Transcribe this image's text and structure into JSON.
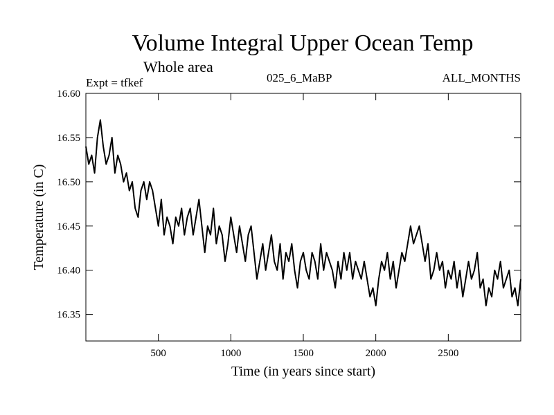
{
  "header": {
    "title": "Volume Integral Upper Ocean Temp",
    "subtitle": "Whole area",
    "experiment": "Expt = tfkef",
    "run_label": "025_6_MaBP",
    "months": "ALL_MONTHS"
  },
  "chart_data": {
    "type": "line",
    "title": "Volume Integral Upper Ocean Temp",
    "subtitle": "Whole area",
    "xlabel": "Time (in years since start)",
    "ylabel": "Temperature (in C)",
    "xlim": [
      0,
      3000
    ],
    "ylim": [
      16.32,
      16.6
    ],
    "xticks": [
      500,
      1000,
      1500,
      2000,
      2500
    ],
    "yticks": [
      16.35,
      16.4,
      16.45,
      16.5,
      16.55,
      16.6
    ],
    "ytick_labels": [
      "16.35",
      "16.40",
      "16.45",
      "16.50",
      "16.55",
      "16.60"
    ],
    "grid": false,
    "color": "#000000",
    "series": [
      {
        "x": [
          0,
          20,
          40,
          60,
          80,
          100,
          120,
          140,
          160,
          180,
          200,
          220,
          240,
          260,
          280,
          300,
          320,
          340,
          360,
          380,
          400,
          420,
          440,
          460,
          480,
          500,
          520,
          540,
          560,
          580,
          600,
          620,
          640,
          660,
          680,
          700,
          720,
          740,
          760,
          780,
          800,
          820,
          840,
          860,
          880,
          900,
          920,
          940,
          960,
          980,
          1000,
          1020,
          1040,
          1060,
          1080,
          1100,
          1120,
          1140,
          1160,
          1180,
          1200,
          1220,
          1240,
          1260,
          1280,
          1300,
          1320,
          1340,
          1360,
          1380,
          1400,
          1420,
          1440,
          1460,
          1480,
          1500,
          1520,
          1540,
          1560,
          1580,
          1600,
          1620,
          1640,
          1660,
          1680,
          1700,
          1720,
          1740,
          1760,
          1780,
          1800,
          1820,
          1840,
          1860,
          1880,
          1900,
          1920,
          1940,
          1960,
          1980,
          2000,
          2020,
          2040,
          2060,
          2080,
          2100,
          2120,
          2140,
          2160,
          2180,
          2200,
          2220,
          2240,
          2260,
          2280,
          2300,
          2320,
          2340,
          2360,
          2380,
          2400,
          2420,
          2440,
          2460,
          2480,
          2500,
          2520,
          2540,
          2560,
          2580,
          2600,
          2620,
          2640,
          2660,
          2680,
          2700,
          2720,
          2740,
          2760,
          2780,
          2800,
          2820,
          2840,
          2860,
          2880,
          2900,
          2920,
          2940,
          2960,
          2980,
          3000
        ],
        "y": [
          16.54,
          16.52,
          16.53,
          16.51,
          16.55,
          16.57,
          16.54,
          16.52,
          16.53,
          16.55,
          16.51,
          16.53,
          16.52,
          16.5,
          16.51,
          16.49,
          16.5,
          16.47,
          16.46,
          16.49,
          16.5,
          16.48,
          16.5,
          16.49,
          16.47,
          16.45,
          16.48,
          16.44,
          16.46,
          16.45,
          16.43,
          16.46,
          16.45,
          16.47,
          16.44,
          16.46,
          16.47,
          16.44,
          16.46,
          16.48,
          16.45,
          16.42,
          16.45,
          16.44,
          16.47,
          16.43,
          16.45,
          16.44,
          16.41,
          16.43,
          16.46,
          16.44,
          16.42,
          16.45,
          16.43,
          16.41,
          16.44,
          16.45,
          16.42,
          16.39,
          16.41,
          16.43,
          16.4,
          16.42,
          16.44,
          16.41,
          16.4,
          16.43,
          16.39,
          16.42,
          16.41,
          16.43,
          16.4,
          16.38,
          16.41,
          16.42,
          16.4,
          16.39,
          16.42,
          16.41,
          16.39,
          16.43,
          16.4,
          16.42,
          16.41,
          16.4,
          16.38,
          16.41,
          16.39,
          16.42,
          16.4,
          16.42,
          16.39,
          16.41,
          16.4,
          16.39,
          16.41,
          16.39,
          16.37,
          16.38,
          16.36,
          16.39,
          16.41,
          16.4,
          16.42,
          16.39,
          16.41,
          16.38,
          16.4,
          16.42,
          16.41,
          16.43,
          16.45,
          16.43,
          16.44,
          16.45,
          16.43,
          16.41,
          16.43,
          16.39,
          16.4,
          16.42,
          16.4,
          16.41,
          16.38,
          16.4,
          16.39,
          16.41,
          16.38,
          16.4,
          16.37,
          16.39,
          16.41,
          16.39,
          16.4,
          16.42,
          16.38,
          16.39,
          16.36,
          16.38,
          16.37,
          16.4,
          16.39,
          16.41,
          16.38,
          16.39,
          16.4,
          16.37,
          16.38,
          16.36,
          16.39
        ]
      }
    ]
  }
}
